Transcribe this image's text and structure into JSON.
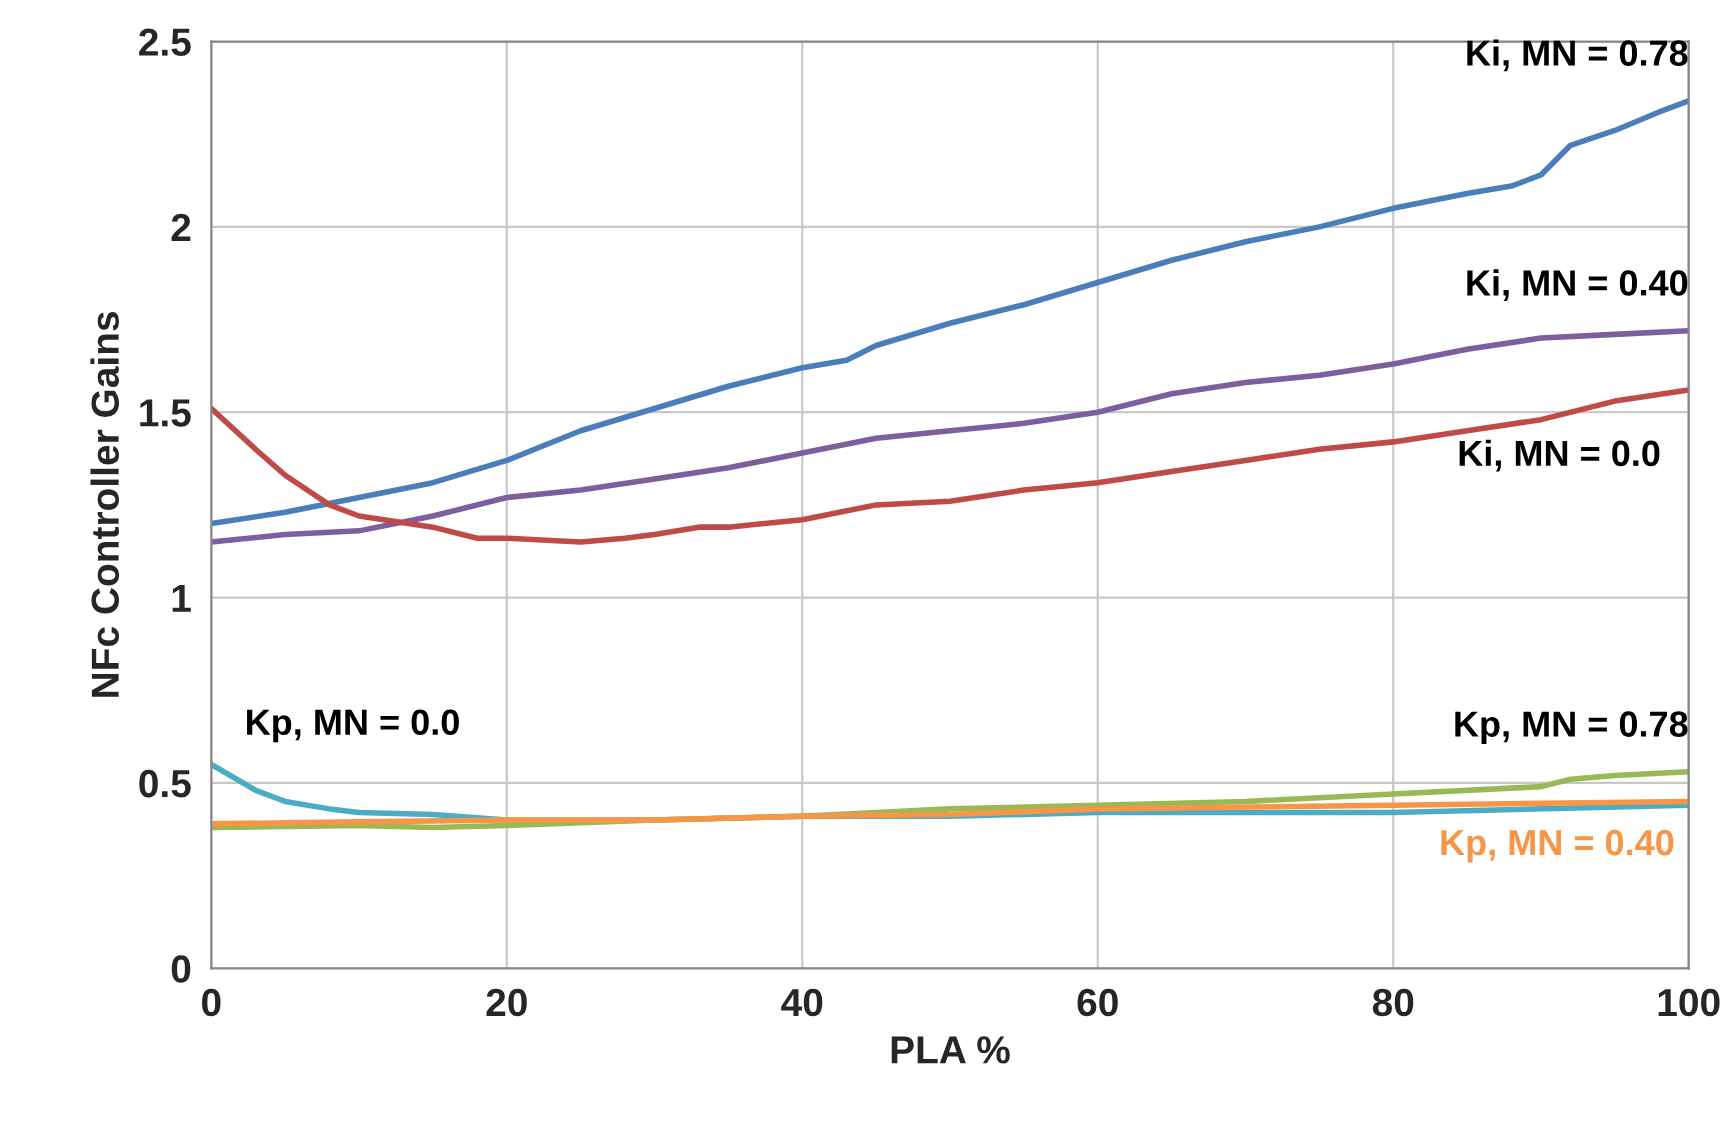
{
  "chart_data": {
    "type": "line",
    "xlabel": "PLA %",
    "ylabel": "NFc Controller Gains",
    "xlim": [
      0,
      100
    ],
    "xticks": [
      0,
      20,
      40,
      60,
      80,
      100
    ],
    "ylim": [
      0,
      2.5
    ],
    "yticks": [
      0,
      0.5,
      1,
      1.5,
      2,
      2.5
    ],
    "grid": true,
    "legend": false,
    "marker": "none",
    "line_style": "solid",
    "series": [
      {
        "name": "Ki, MN = 0.78",
        "color": "#4a7ebb",
        "x": [
          0,
          5,
          10,
          15,
          20,
          25,
          30,
          35,
          40,
          43,
          45,
          50,
          55,
          60,
          65,
          70,
          75,
          80,
          85,
          88,
          90,
          92,
          95,
          98,
          100
        ],
        "values": [
          1.2,
          1.23,
          1.27,
          1.31,
          1.37,
          1.45,
          1.51,
          1.57,
          1.62,
          1.64,
          1.68,
          1.74,
          1.79,
          1.85,
          1.91,
          1.96,
          2.0,
          2.05,
          2.09,
          2.11,
          2.14,
          2.22,
          2.26,
          2.31,
          2.34
        ]
      },
      {
        "name": "Ki, MN = 0.40",
        "color": "#7d5fa0",
        "x": [
          0,
          5,
          10,
          15,
          20,
          25,
          30,
          35,
          40,
          45,
          50,
          55,
          60,
          65,
          70,
          75,
          80,
          85,
          90,
          95,
          100
        ],
        "values": [
          1.15,
          1.17,
          1.18,
          1.22,
          1.27,
          1.29,
          1.32,
          1.35,
          1.39,
          1.43,
          1.45,
          1.47,
          1.5,
          1.55,
          1.58,
          1.6,
          1.63,
          1.67,
          1.7,
          1.71,
          1.72
        ]
      },
      {
        "name": "Ki, MN = 0.0",
        "color": "#be4b48",
        "x": [
          0,
          3,
          5,
          8,
          10,
          15,
          18,
          20,
          25,
          28,
          30,
          33,
          35,
          40,
          45,
          50,
          55,
          60,
          65,
          70,
          75,
          80,
          85,
          90,
          95,
          100
        ],
        "values": [
          1.51,
          1.4,
          1.33,
          1.25,
          1.22,
          1.19,
          1.16,
          1.16,
          1.15,
          1.16,
          1.17,
          1.19,
          1.19,
          1.21,
          1.25,
          1.26,
          1.29,
          1.31,
          1.34,
          1.37,
          1.4,
          1.42,
          1.45,
          1.48,
          1.53,
          1.56
        ]
      },
      {
        "name": "Kp, MN = 0.0",
        "color": "#4bacc6",
        "x": [
          0,
          3,
          5,
          8,
          10,
          15,
          20,
          30,
          40,
          50,
          60,
          80,
          100
        ],
        "values": [
          0.55,
          0.48,
          0.45,
          0.43,
          0.42,
          0.415,
          0.4,
          0.4,
          0.41,
          0.41,
          0.42,
          0.42,
          0.44
        ]
      },
      {
        "name": "Kp, MN = 0.78",
        "color": "#98b954",
        "x": [
          0,
          10,
          15,
          20,
          30,
          40,
          50,
          60,
          70,
          80,
          90,
          92,
          95,
          100
        ],
        "values": [
          0.38,
          0.385,
          0.38,
          0.385,
          0.4,
          0.41,
          0.43,
          0.44,
          0.45,
          0.47,
          0.49,
          0.51,
          0.52,
          0.53
        ]
      },
      {
        "name": "Kp, MN = 0.40",
        "color": "#f79646",
        "x": [
          0,
          10,
          20,
          30,
          40,
          50,
          60,
          80,
          100
        ],
        "values": [
          0.39,
          0.395,
          0.4,
          0.4,
          0.41,
          0.415,
          0.43,
          0.44,
          0.45
        ]
      }
    ]
  }
}
